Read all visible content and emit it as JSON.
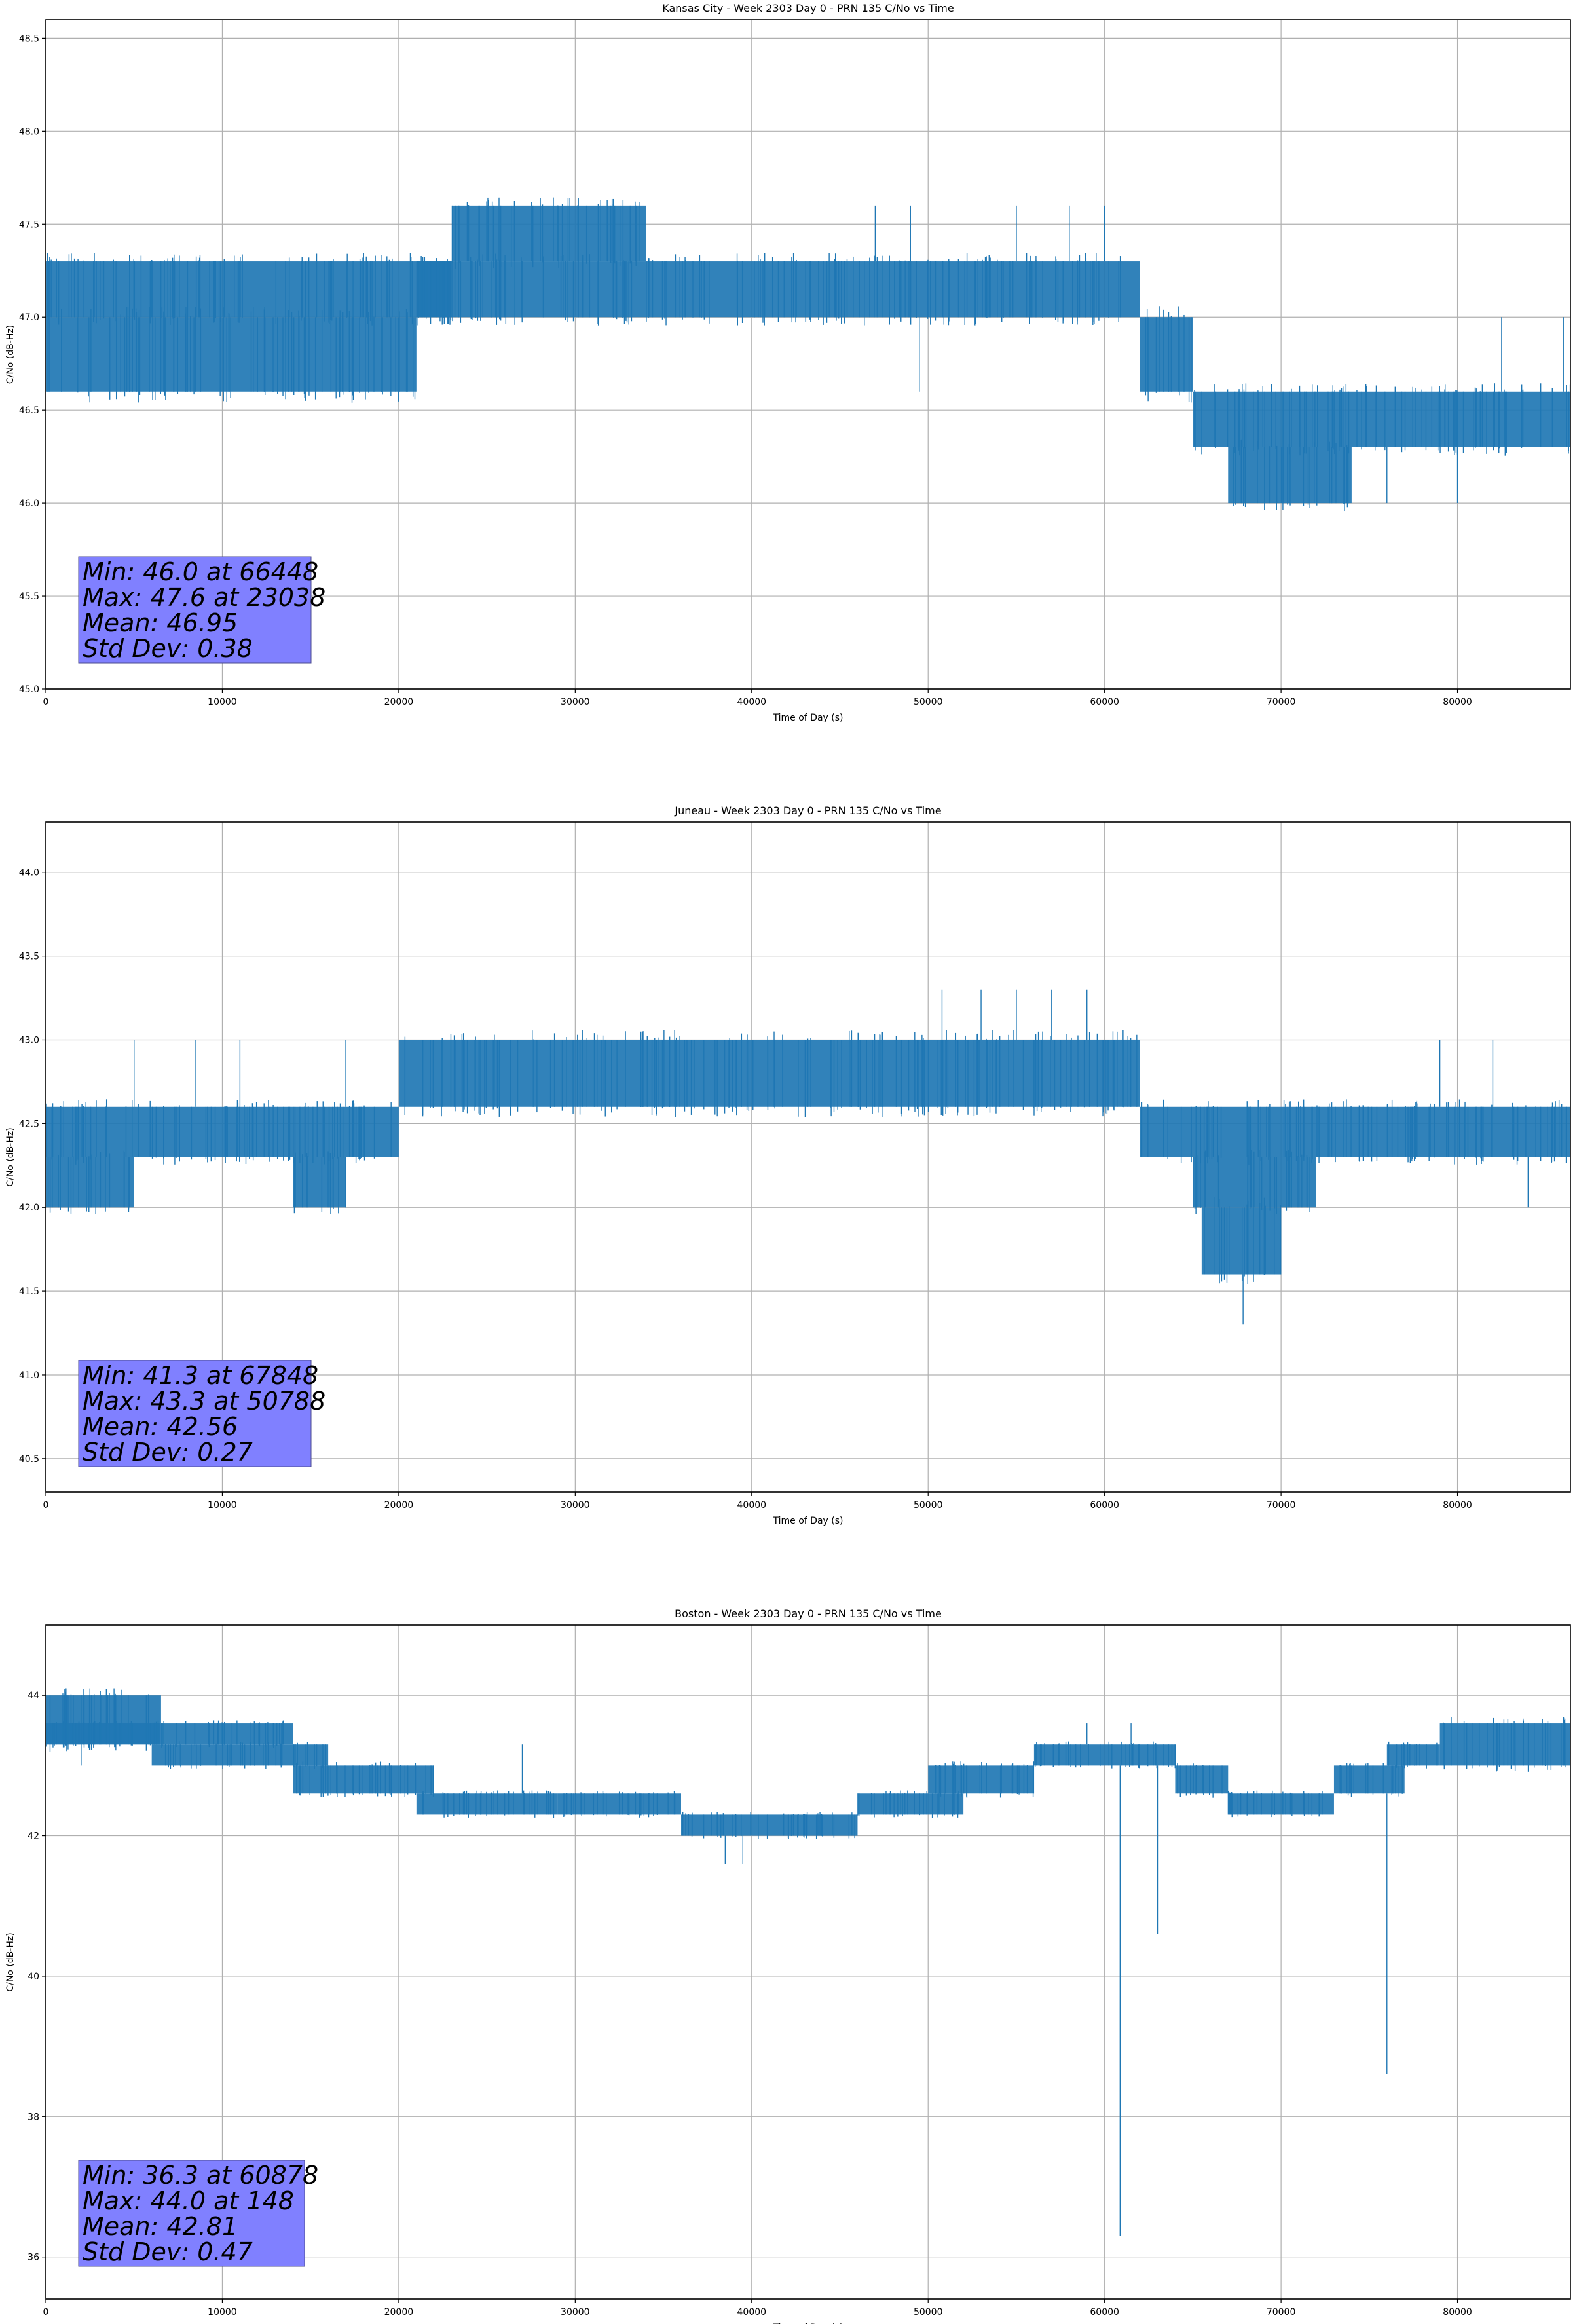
{
  "chart_data": [
    {
      "type": "line",
      "title": "Kansas City - Week 2303 Day 0 - PRN 135 C/No vs Time",
      "xlabel": "Time of Day (s)",
      "ylabel": "C/No (dB-Hz)",
      "xlim": [
        0,
        86400
      ],
      "ylim": [
        45.0,
        48.6
      ],
      "xticks": [
        0,
        10000,
        20000,
        30000,
        40000,
        50000,
        60000,
        70000,
        80000
      ],
      "yticks": [
        45.0,
        45.5,
        46.0,
        46.5,
        47.0,
        47.5,
        48.0,
        48.5
      ],
      "ytick_decimals": 1,
      "grid": true,
      "color": "#1f77b4",
      "stats": [
        "Min: 46.0 at 66448",
        "Max: 47.6 at 23038",
        "Mean: 46.95",
        "Std Dev: 0.38"
      ],
      "series": [
        {
          "segments": [
            {
              "x": [
                0,
                21000
              ],
              "low": 46.6,
              "high": 47.0
            },
            {
              "x": [
                0,
                23000
              ],
              "low": 47.0,
              "high": 47.3
            },
            {
              "x": [
                21000,
                62000
              ],
              "low": 47.0,
              "high": 47.3
            },
            {
              "x": [
                23000,
                34000
              ],
              "low": 47.3,
              "high": 47.6
            },
            {
              "x": [
                62000,
                65000
              ],
              "low": 46.6,
              "high": 47.0
            },
            {
              "x": [
                65000,
                86400
              ],
              "low": 46.3,
              "high": 46.6
            },
            {
              "x": [
                67000,
                74000
              ],
              "low": 46.0,
              "high": 46.3
            }
          ],
          "spikes": [
            {
              "x": 49500,
              "low": 46.6,
              "high": 47.0
            },
            {
              "x": 47000,
              "low": 47.3,
              "high": 47.6
            },
            {
              "x": 49000,
              "low": 47.3,
              "high": 47.6
            },
            {
              "x": 55000,
              "low": 47.3,
              "high": 47.6
            },
            {
              "x": 58000,
              "low": 47.3,
              "high": 47.6
            },
            {
              "x": 60000,
              "low": 47.3,
              "high": 47.6
            },
            {
              "x": 82500,
              "low": 46.6,
              "high": 47.0
            },
            {
              "x": 86000,
              "low": 46.6,
              "high": 47.0
            },
            {
              "x": 76000,
              "low": 46.0,
              "high": 46.3
            },
            {
              "x": 80000,
              "low": 46.0,
              "high": 46.3
            },
            {
              "x": 5000,
              "low": 47.0,
              "high": 47.3
            },
            {
              "x": 12000,
              "low": 46.6,
              "high": 47.0
            }
          ]
        }
      ]
    },
    {
      "type": "line",
      "title": "Juneau - Week 2303 Day 0 - PRN 135 C/No vs Time",
      "xlabel": "Time of Day (s)",
      "ylabel": "C/No (dB-Hz)",
      "xlim": [
        0,
        86400
      ],
      "ylim": [
        40.3,
        44.3
      ],
      "xticks": [
        0,
        10000,
        20000,
        30000,
        40000,
        50000,
        60000,
        70000,
        80000
      ],
      "yticks": [
        40.5,
        41.0,
        41.5,
        42.0,
        42.5,
        43.0,
        43.5,
        44.0
      ],
      "ytick_decimals": 1,
      "grid": true,
      "color": "#1f77b4",
      "stats": [
        "Min: 41.3 at 67848",
        "Max: 43.3 at 50788",
        "Mean: 42.56",
        "Std Dev: 0.27"
      ],
      "series": [
        {
          "segments": [
            {
              "x": [
                0,
                5000
              ],
              "low": 42.0,
              "high": 42.3
            },
            {
              "x": [
                0,
                20000
              ],
              "low": 42.3,
              "high": 42.6
            },
            {
              "x": [
                14000,
                17000
              ],
              "low": 42.0,
              "high": 42.3
            },
            {
              "x": [
                20000,
                62000
              ],
              "low": 42.6,
              "high": 43.0
            },
            {
              "x": [
                62000,
                86400
              ],
              "low": 42.3,
              "high": 42.6
            },
            {
              "x": [
                65000,
                72000
              ],
              "low": 42.0,
              "high": 42.3
            },
            {
              "x": [
                65500,
                70000
              ],
              "low": 41.6,
              "high": 42.0
            }
          ],
          "spikes": [
            {
              "x": 67848,
              "low": 41.3,
              "high": 41.6
            },
            {
              "x": 50788,
              "low": 43.0,
              "high": 43.3
            },
            {
              "x": 53000,
              "low": 43.0,
              "high": 43.3
            },
            {
              "x": 55000,
              "low": 43.0,
              "high": 43.3
            },
            {
              "x": 57000,
              "low": 43.0,
              "high": 43.3
            },
            {
              "x": 59000,
              "low": 43.0,
              "high": 43.3
            },
            {
              "x": 5000,
              "low": 42.6,
              "high": 43.0
            },
            {
              "x": 8500,
              "low": 42.6,
              "high": 43.0
            },
            {
              "x": 11000,
              "low": 42.6,
              "high": 43.0
            },
            {
              "x": 17000,
              "low": 42.6,
              "high": 43.0
            },
            {
              "x": 79000,
              "low": 42.6,
              "high": 43.0
            },
            {
              "x": 82000,
              "low": 42.6,
              "high": 43.0
            },
            {
              "x": 84000,
              "low": 42.0,
              "high": 42.3
            }
          ]
        }
      ]
    },
    {
      "type": "line",
      "title": "Boston - Week 2303 Day 0 - PRN 135 C/No vs Time",
      "xlabel": "Time of Day (s)",
      "ylabel": "C/No (dB-Hz)",
      "xlim": [
        0,
        86400
      ],
      "ylim": [
        35.4,
        45.0
      ],
      "xticks": [
        0,
        10000,
        20000,
        30000,
        40000,
        50000,
        60000,
        70000,
        80000
      ],
      "yticks": [
        36,
        38,
        40,
        42,
        44
      ],
      "ytick_decimals": 0,
      "grid": true,
      "color": "#1f77b4",
      "stats": [
        "Min: 36.3 at 60878",
        "Max: 44.0 at 148",
        "Mean: 42.81",
        "Std Dev: 0.47"
      ],
      "series": [
        {
          "segments": [
            {
              "x": [
                0,
                6500
              ],
              "low": 43.3,
              "high": 44.0
            },
            {
              "x": [
                0,
                14000
              ],
              "low": 43.3,
              "high": 43.6
            },
            {
              "x": [
                6000,
                16000
              ],
              "low": 43.0,
              "high": 43.3
            },
            {
              "x": [
                14000,
                22000
              ],
              "low": 42.6,
              "high": 43.0
            },
            {
              "x": [
                21000,
                29000
              ],
              "low": 42.3,
              "high": 42.6
            },
            {
              "x": [
                29000,
                36000
              ],
              "low": 42.3,
              "high": 42.6
            },
            {
              "x": [
                36000,
                46000
              ],
              "low": 42.0,
              "high": 42.3
            },
            {
              "x": [
                46000,
                52000
              ],
              "low": 42.3,
              "high": 42.6
            },
            {
              "x": [
                50000,
                56000
              ],
              "low": 42.6,
              "high": 43.0
            },
            {
              "x": [
                56000,
                64000
              ],
              "low": 43.0,
              "high": 43.3
            },
            {
              "x": [
                64000,
                67000
              ],
              "low": 42.6,
              "high": 43.0
            },
            {
              "x": [
                67000,
                73000
              ],
              "low": 42.3,
              "high": 42.6
            },
            {
              "x": [
                73000,
                77000
              ],
              "low": 42.6,
              "high": 43.0
            },
            {
              "x": [
                76000,
                79000
              ],
              "low": 43.0,
              "high": 43.3
            },
            {
              "x": [
                79000,
                86400
              ],
              "low": 43.0,
              "high": 43.6
            }
          ],
          "spikes": [
            {
              "x": 60878,
              "low": 36.3,
              "high": 43.0
            },
            {
              "x": 63000,
              "low": 40.6,
              "high": 43.0
            },
            {
              "x": 76000,
              "low": 38.6,
              "high": 42.6
            },
            {
              "x": 2000,
              "low": 43.0,
              "high": 44.0
            },
            {
              "x": 3500,
              "low": 43.6,
              "high": 44.0
            },
            {
              "x": 6500,
              "low": 43.6,
              "high": 44.0
            },
            {
              "x": 27000,
              "low": 42.6,
              "high": 43.3
            },
            {
              "x": 38500,
              "low": 41.6,
              "high": 42.0
            },
            {
              "x": 39500,
              "low": 41.6,
              "high": 42.0
            },
            {
              "x": 59000,
              "low": 43.3,
              "high": 43.6
            },
            {
              "x": 61500,
              "low": 43.3,
              "high": 43.6
            }
          ]
        }
      ]
    }
  ]
}
